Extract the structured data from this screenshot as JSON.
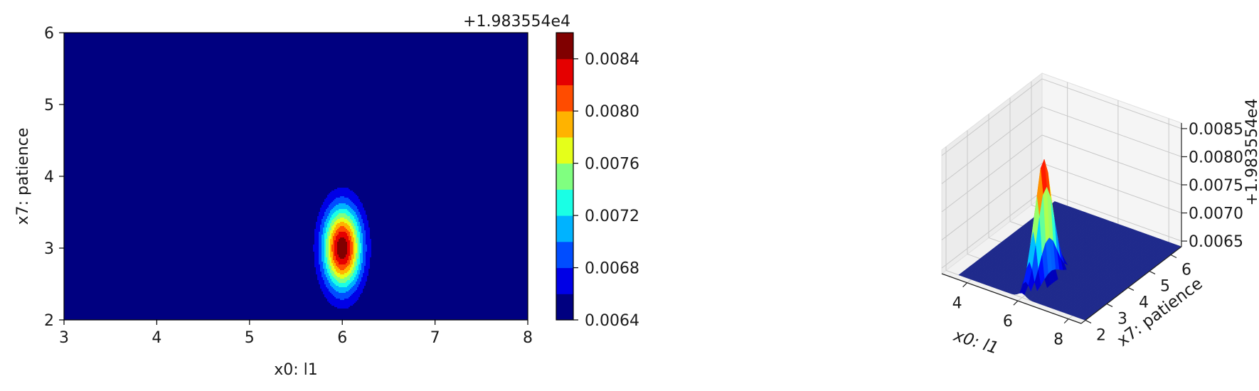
{
  "chart_data": [
    {
      "type": "contour",
      "xlabel": "x0: l1",
      "ylabel": "x7: patience",
      "xlim": [
        3,
        8
      ],
      "ylim": [
        2,
        6
      ],
      "xticks": [
        "3",
        "4",
        "5",
        "6",
        "7",
        "8"
      ],
      "yticks": [
        "2",
        "3",
        "4",
        "5",
        "6"
      ],
      "peak": {
        "x": 6.0,
        "y": 3.0
      },
      "colorbar": {
        "offset_label": "+1.983554e4",
        "ticks": [
          "0.0064",
          "0.0068",
          "0.0072",
          "0.0076",
          "0.0080",
          "0.0084"
        ],
        "range": [
          0.0064,
          0.0086
        ],
        "levels": 11,
        "colormap": "jet"
      }
    },
    {
      "type": "surface3d",
      "xlabel": "x0: l1",
      "ylabel": "x7: patience",
      "xticks": [
        "4",
        "6",
        "8"
      ],
      "yticks": [
        "2",
        "3",
        "4",
        "5",
        "6"
      ],
      "zticks": [
        "0.0065",
        "0.0070",
        "0.0075",
        "0.0080",
        "0.0085"
      ],
      "zoffset_label": "+1.983554e4",
      "zlim": [
        0.0064,
        0.0086
      ],
      "peak": {
        "x": 6.0,
        "y": 3.0
      },
      "colormap": "jet"
    }
  ]
}
